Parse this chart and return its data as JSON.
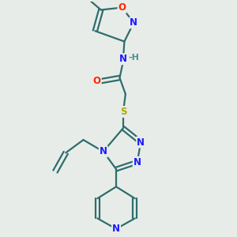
{
  "bg_color": "#e8ece8",
  "bond_color": "#2d6e6e",
  "bond_width": 1.6,
  "atom_colors": {
    "N": "#1a1aff",
    "O": "#ff2200",
    "S": "#aaaa00",
    "H": "#4a9090",
    "C": "#2d6e6e"
  },
  "font_size": 8.5,
  "fig_size": [
    3.0,
    3.0
  ],
  "dpi": 100
}
